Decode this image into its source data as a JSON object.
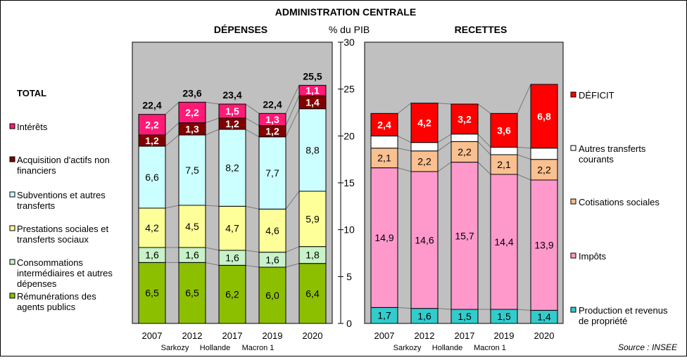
{
  "title": "ADMINISTRATION CENTRALE",
  "source": "Source : INSEE",
  "axis_label": "% du PIB",
  "colors": {
    "remunerations": "#8cbf00",
    "consommations": "#c8f2c8",
    "prestations": "#ffff99",
    "subventions": "#ccffff",
    "acquisition": "#800000",
    "interets": "#ff1a75",
    "production": "#33cccc",
    "impots": "#ff99cc",
    "cotisations": "#fac090",
    "autres": "#ffffff",
    "deficit": "#ff0000",
    "plot_bg": "#c0c0c0"
  },
  "chart_data": [
    {
      "type": "bar",
      "stacked": true,
      "title": "DÉPENSES",
      "categories": [
        "2007",
        "2012",
        "2017",
        "2019",
        "2020"
      ],
      "period_labels": [
        "Sarkozy",
        "Hollande",
        "Macron 1"
      ],
      "ylim": [
        0,
        30
      ],
      "yticks": [
        0,
        5,
        10,
        15,
        20,
        25,
        30
      ],
      "grid": false,
      "legend_position": "left",
      "total_label": "TOTAL",
      "totals": [
        "22,4",
        "23,6",
        "23,4",
        "22,4",
        "25,5"
      ],
      "series": [
        {
          "key": "remunerations",
          "name": "Rémunérations des agents publics",
          "values": [
            6.5,
            6.5,
            6.2,
            6.0,
            6.4
          ],
          "labels": [
            "6,5",
            "6,5",
            "6,2",
            "6,0",
            "6,4"
          ]
        },
        {
          "key": "consommations",
          "name": "Consommations intermédiaires et autres dépenses",
          "values": [
            1.6,
            1.6,
            1.6,
            1.6,
            1.8
          ],
          "labels": [
            "1,6",
            "1,6",
            "1,6",
            "1,6",
            "1,8"
          ]
        },
        {
          "key": "prestations",
          "name": "Prestations sociales et transferts sociaux",
          "values": [
            4.2,
            4.5,
            4.7,
            4.6,
            5.9
          ],
          "labels": [
            "4,2",
            "4,5",
            "4,7",
            "4,6",
            "5,9"
          ]
        },
        {
          "key": "subventions",
          "name": "Subventions et autres transferts",
          "values": [
            6.6,
            7.5,
            8.2,
            7.7,
            8.8
          ],
          "labels": [
            "6,6",
            "7,5",
            "8,2",
            "7,7",
            "8,8"
          ]
        },
        {
          "key": "acquisition",
          "name": "Acquisition d'actifs non financiers",
          "values": [
            1.2,
            1.3,
            1.2,
            1.2,
            1.4
          ],
          "labels": [
            "1,2",
            "1,3",
            "1,2",
            "1,2",
            "1,4"
          ]
        },
        {
          "key": "interets",
          "name": "Intérêts",
          "values": [
            2.2,
            2.2,
            1.5,
            1.3,
            1.1
          ],
          "labels": [
            "2,2",
            "2,2",
            "1,5",
            "1,3",
            "1,1"
          ]
        }
      ]
    },
    {
      "type": "bar",
      "stacked": true,
      "title": "RECETTES",
      "categories": [
        "2007",
        "2012",
        "2017",
        "2019",
        "2020"
      ],
      "period_labels": [
        "Sarkozy",
        "Hollande",
        "Macron 1"
      ],
      "ylim": [
        0,
        30
      ],
      "grid": false,
      "legend_position": "right",
      "series": [
        {
          "key": "production",
          "name": "Production et revenus de propriété",
          "values": [
            1.7,
            1.6,
            1.5,
            1.5,
            1.4
          ],
          "labels": [
            "1,7",
            "1,6",
            "1,5",
            "1,5",
            "1,4"
          ]
        },
        {
          "key": "impots",
          "name": "Impôts",
          "values": [
            14.9,
            14.6,
            15.7,
            14.4,
            13.9
          ],
          "labels": [
            "14,9",
            "14,6",
            "15,7",
            "14,4",
            "13,9"
          ]
        },
        {
          "key": "cotisations",
          "name": "Cotisations sociales",
          "values": [
            2.1,
            2.2,
            2.2,
            2.1,
            2.2
          ],
          "labels": [
            "2,1",
            "2,2",
            "2,2",
            "2,1",
            "2,2"
          ]
        },
        {
          "key": "autres",
          "name": "Autres transferts courants",
          "values": [
            1.3,
            0.9,
            0.8,
            0.8,
            1.2
          ],
          "labels": [
            "",
            "",
            "",
            "",
            ""
          ]
        },
        {
          "key": "deficit",
          "name": "DÉFICIT",
          "values": [
            2.4,
            4.2,
            3.2,
            3.6,
            6.8
          ],
          "labels": [
            "2,4",
            "4,2",
            "3,2",
            "3,6",
            "6,8"
          ]
        }
      ]
    }
  ]
}
